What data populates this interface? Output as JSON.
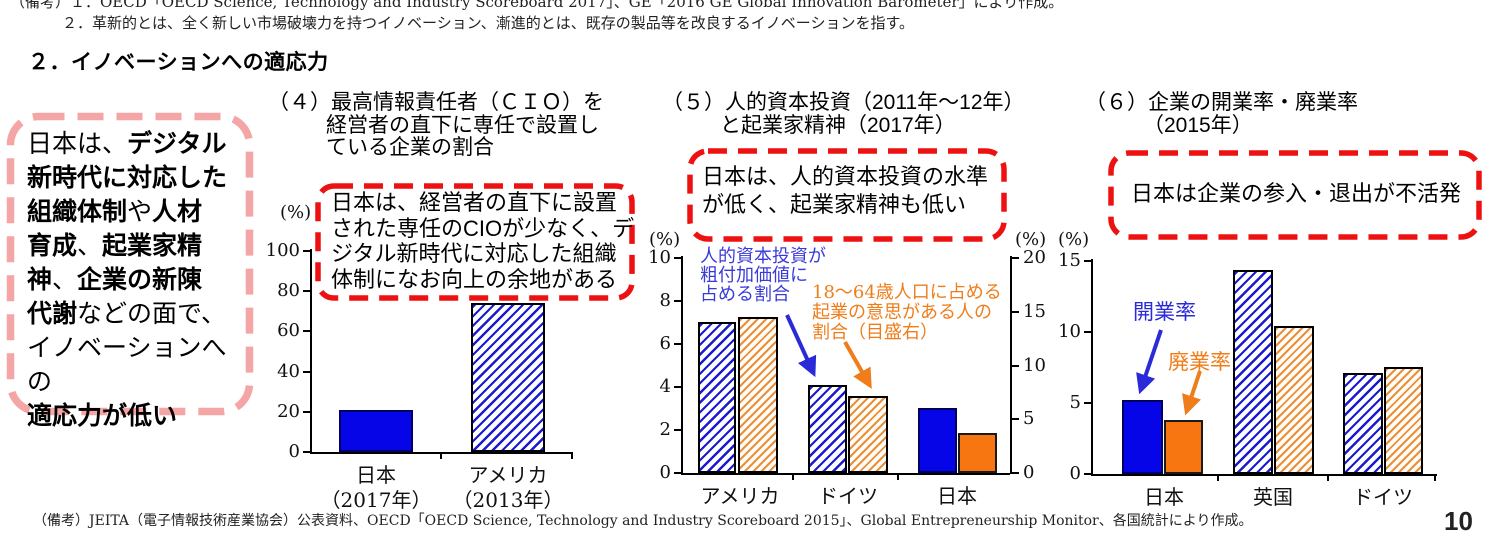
{
  "page": {
    "notes_top_1": "（備考）１．OECD「OECD Science, Technology and Industry Scoreboard 2017」、GE「2016 GE Global Innovation Barometer」により作成。",
    "notes_top_2": "２．革新的とは、全く新しい市場破壊力を持つイノベーション、漸進的とは、既存の製品等を改良するイノベーションを指す。",
    "heading": "２．イノベーションへの適応力",
    "note_bottom": "（備考）JEITA（電子情報技術産業協会）公表資料、OECD「OECD Science, Technology and Industry Scoreboard 2015」、Global Entrepreneurship Monitor、各国統計により作成。",
    "page_number": "10"
  },
  "colors": {
    "bar_blue": "#0505e8",
    "bar_orange": "#f87611",
    "callout_red": "#ee1111",
    "pink_border": "#f4a6a6",
    "annotation_blue": "#3a3ad8",
    "annotation_orange": "#ef7d1a"
  },
  "left_box": {
    "segments": [
      {
        "t": "日本は、",
        "b": false
      },
      {
        "t": "デジタル\n新時代に対応した\n組織体制",
        "b": true
      },
      {
        "t": "や",
        "b": false
      },
      {
        "t": "人材\n育成",
        "b": true
      },
      {
        "t": "、",
        "b": false
      },
      {
        "t": "起業家精\n神",
        "b": true
      },
      {
        "t": "、",
        "b": false
      },
      {
        "t": "企業の新陳\n代謝",
        "b": true
      },
      {
        "t": "などの面で、\nイノベーションへの\n",
        "b": false
      },
      {
        "t": "適応力が低い",
        "b": true
      }
    ]
  },
  "chart_data": [
    {
      "type": "bar",
      "title": "（４）最高情報責任者（ＣＩＯ）を経営者の直下に専任で設置している企業の割合",
      "title_lines": "（４）最高情報責任者（ＣＩＯ）を\n経営者の直下に専任で設置し\nている企業の割合",
      "unit_label": "(%)",
      "ylim": [
        0,
        100
      ],
      "yticks": [
        0,
        20,
        40,
        60,
        80,
        100
      ],
      "categories": [
        "日本\n（2017年）",
        "アメリカ\n（2013年）"
      ],
      "values": [
        21,
        74
      ],
      "bar_styles": [
        "solid-blue",
        "hatch-blue"
      ],
      "callout": "日本は、経営者の直下に設置\nされた専任のCIOが少なく、デ\nジタル新時代に対応した組織\n体制になお向上の余地がある",
      "grid": false,
      "legend": "none"
    },
    {
      "type": "bar",
      "title": "（５）人的資本投資（2011年～12年）と起業家精神（2017年）",
      "title_lines": "（５）人的資本投資（2011年～12年）\nと起業家精神（2017年）",
      "unit_label_left": "(%)",
      "unit_label_right": "(%)",
      "ylim_left": [
        0,
        10
      ],
      "yticks_left": [
        0,
        2,
        4,
        6,
        8,
        10
      ],
      "ylim_right": [
        0,
        20
      ],
      "yticks_right": [
        0,
        5,
        10,
        15,
        20
      ],
      "categories": [
        "アメリカ",
        "ドイツ",
        "日本"
      ],
      "series": [
        {
          "name": "人的資本投資が粗付加価値に占める割合",
          "axis": "left",
          "values": [
            7.0,
            4.1,
            3.0
          ],
          "styles": [
            "hatch-blue",
            "hatch-blue",
            "solid-blue"
          ]
        },
        {
          "name": "18～64歳人口に占める起業の意思がある人の割合（目盛右）",
          "axis": "right",
          "values": [
            14.5,
            7.2,
            3.7
          ],
          "styles": [
            "hatch-orange",
            "hatch-orange",
            "solid-orange"
          ]
        }
      ],
      "annotation_left": "人的資本投資が\n粗付加価値に\n占める割合",
      "annotation_right": "18～64歳人口に占める\n起業の意思がある人の\n割合（目盛右）",
      "callout": "日本は、人的資本投資の水準\nが低く、起業家精神も低い",
      "grid": false,
      "legend": "in-chart-annotations"
    },
    {
      "type": "bar",
      "title": "（６）企業の開業率・廃業率（2015年）",
      "title_lines": "（６）企業の開業率・廃業率\n（2015年）",
      "unit_label": "(%)",
      "ylim": [
        0,
        15
      ],
      "yticks": [
        0,
        5,
        10,
        15
      ],
      "categories": [
        "日本",
        "英国",
        "ドイツ"
      ],
      "series": [
        {
          "name": "開業率",
          "values": [
            5.2,
            14.4,
            7.1
          ],
          "styles": [
            "solid-blue",
            "hatch-blue",
            "hatch-blue"
          ]
        },
        {
          "name": "廃業率",
          "values": [
            3.8,
            10.4,
            7.5
          ],
          "styles": [
            "solid-orange",
            "hatch-orange",
            "hatch-orange"
          ]
        }
      ],
      "annotation_open": "開業率",
      "annotation_close": "廃業率",
      "callout": "日本は企業の参入・退出が不活発",
      "grid": false,
      "legend": "in-chart-annotations"
    }
  ]
}
